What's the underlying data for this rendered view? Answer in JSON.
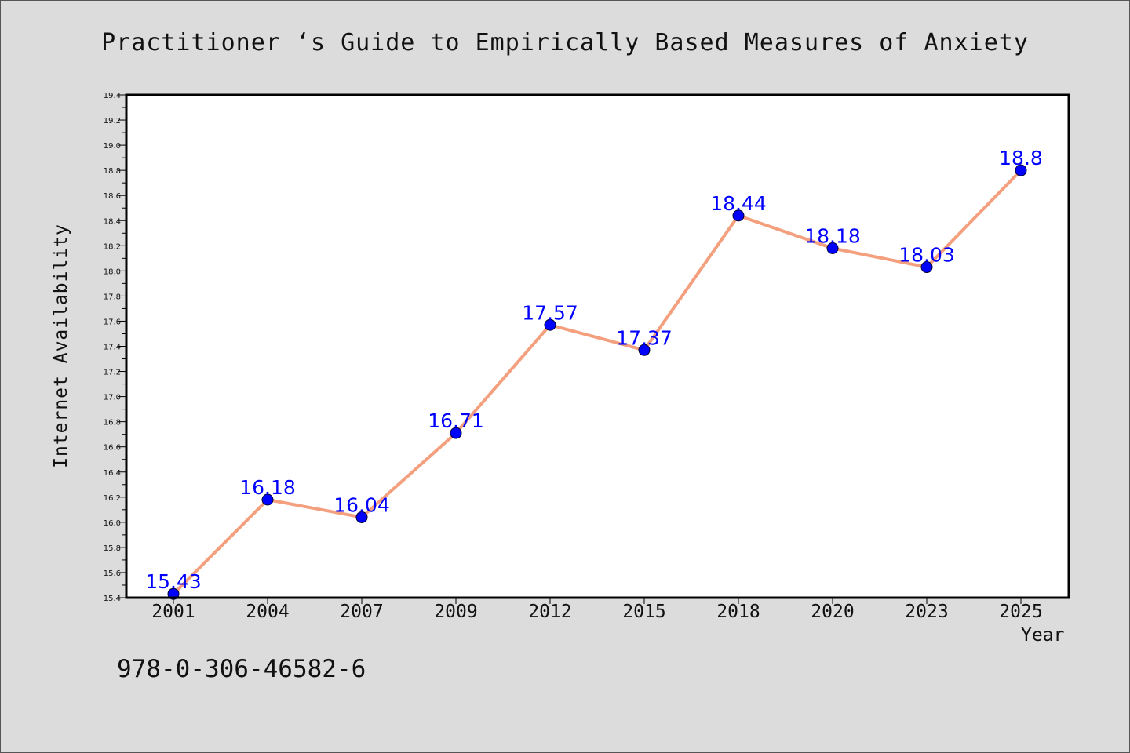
{
  "chart_data": {
    "type": "line",
    "title": "Practitioner ‘s Guide to Empirically Based Measures of Anxiety",
    "xlabel": "Year",
    "ylabel": "Internet Availability",
    "categories": [
      "2001",
      "2004",
      "2007",
      "2009",
      "2012",
      "2015",
      "2018",
      "2020",
      "2023",
      "2025"
    ],
    "series": [
      {
        "values": [
          15.43,
          16.18,
          16.04,
          16.71,
          17.57,
          17.37,
          18.44,
          18.18,
          18.03,
          18.8
        ],
        "data_labels": [
          "15.43",
          "16.18",
          "16.04",
          "16.71",
          "17.57",
          "17.37",
          "18.44",
          "18.18",
          "18.03",
          "18.8"
        ],
        "line_color": "#f4a07e",
        "marker_color": "#0000ff"
      }
    ],
    "ylim": [
      15.4,
      19.4
    ],
    "ytick_labels": [
      "15.4",
      "15.6",
      "15.8",
      "16.0",
      "16.2",
      "16.4",
      "16.6",
      "16.8",
      "17.0",
      "17.2",
      "17.4",
      "17.6",
      "17.8",
      "18.0",
      "18.2",
      "18.4",
      "18.6",
      "18.8",
      "19.0",
      "19.2",
      "19.4"
    ],
    "grid": false,
    "background_color": "#dcdcdc",
    "plot_background": "#ffffff"
  },
  "footer_text": "978-0-306-46582-6"
}
